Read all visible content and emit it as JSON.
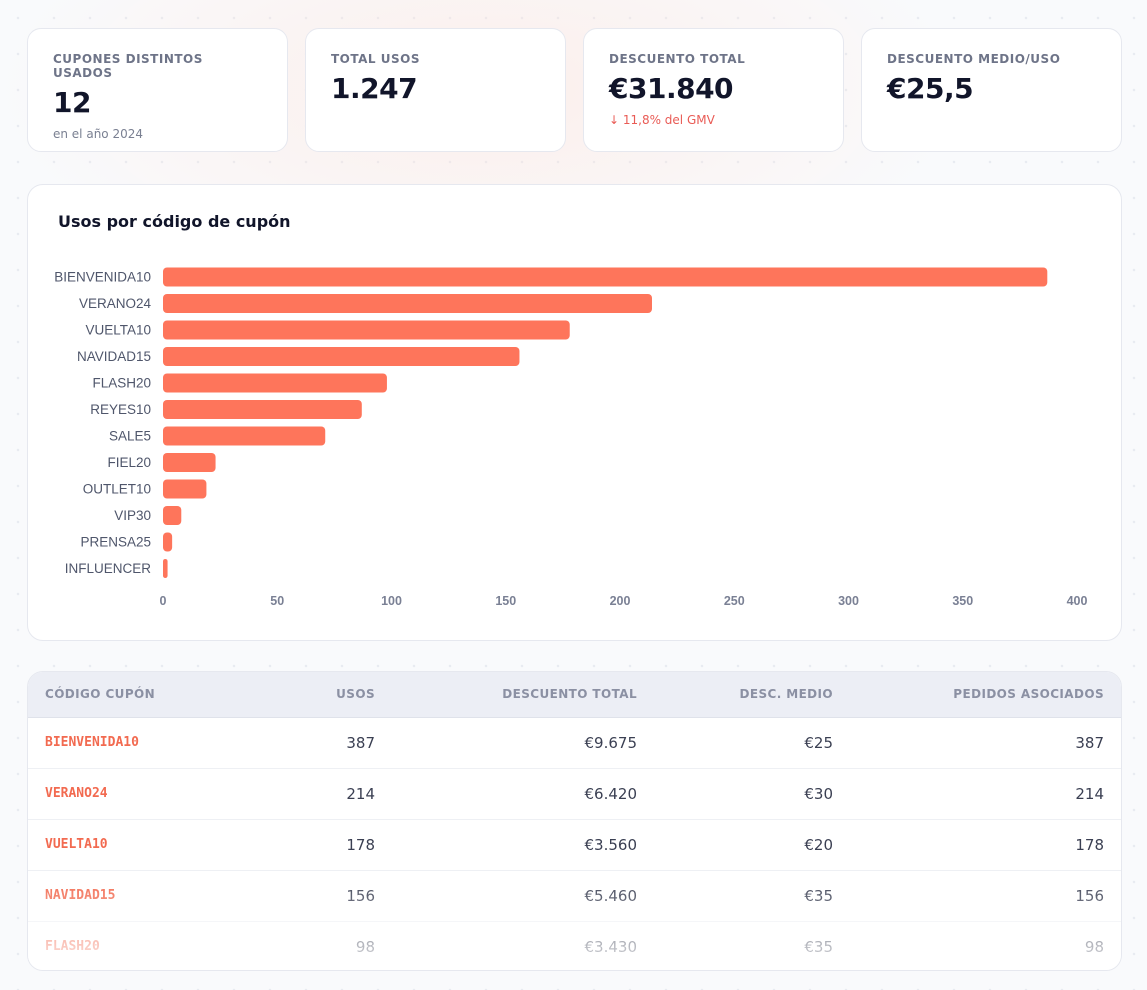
{
  "kpis": [
    {
      "label": "CUPONES DISTINTOS USADOS",
      "value": "12",
      "sub": "en el año 2024",
      "trend": "neutral"
    },
    {
      "label": "TOTAL USOS",
      "value": "1.247",
      "sub": "",
      "trend": "neutral"
    },
    {
      "label": "DESCUENTO TOTAL",
      "value": "€31.840",
      "sub": "↓ 11,8% del GMV",
      "trend": "negative"
    },
    {
      "label": "DESCUENTO MEDIO/USO",
      "value": "€25,5",
      "sub": "",
      "trend": "neutral"
    }
  ],
  "chart_data": {
    "type": "bar",
    "orientation": "horizontal",
    "title": "Usos por código de cupón",
    "categories": [
      "BIENVENIDA10",
      "VERANO24",
      "VUELTA10",
      "NAVIDAD15",
      "FLASH20",
      "REYES10",
      "SALE5",
      "FIEL20",
      "OUTLET10",
      "VIP30",
      "PRENSA25",
      "INFLUENCER"
    ],
    "values": [
      387,
      214,
      178,
      156,
      98,
      87,
      71,
      23,
      19,
      8,
      4,
      2
    ],
    "xlim": [
      0,
      400
    ],
    "xticks": [
      "0",
      "50",
      "100",
      "150",
      "200",
      "250",
      "300",
      "350",
      "400"
    ],
    "xlabel": "",
    "ylabel": "",
    "grid": false,
    "bar_color": "#fe755b"
  },
  "table": {
    "headers": [
      "CÓDIGO CUPÓN",
      "USOS",
      "DESCUENTO TOTAL",
      "DESC. MEDIO",
      "PEDIDOS ASOCIADOS"
    ],
    "rows": [
      {
        "code": "BIENVENIDA10",
        "uses": "387",
        "discount": "€9.675",
        "avg": "€25",
        "orders": "387"
      },
      {
        "code": "VERANO24",
        "uses": "214",
        "discount": "€6.420",
        "avg": "€30",
        "orders": "214"
      },
      {
        "code": "VUELTA10",
        "uses": "178",
        "discount": "€3.560",
        "avg": "€20",
        "orders": "178"
      },
      {
        "code": "NAVIDAD15",
        "uses": "156",
        "discount": "€5.460",
        "avg": "€35",
        "orders": "156"
      },
      {
        "code": "FLASH20",
        "uses": "98",
        "discount": "€3.430",
        "avg": "€35",
        "orders": "98"
      }
    ]
  }
}
